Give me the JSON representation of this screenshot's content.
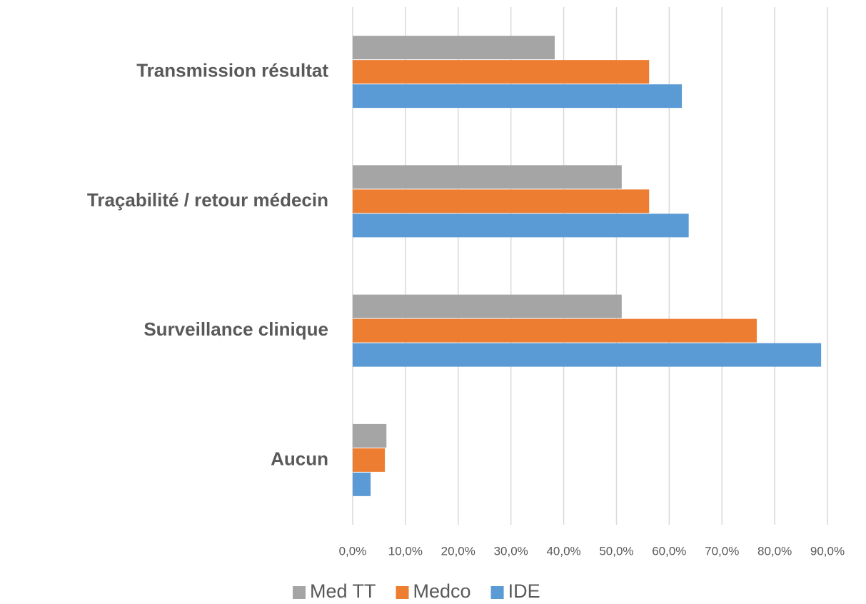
{
  "chart_data": {
    "type": "hbar",
    "categories": [
      "Transmission résultat",
      "Traçabilité / retour médecin",
      "Surveillance clinique",
      "Aucun"
    ],
    "series": [
      {
        "name": "Med TT",
        "color": "#a5a5a5",
        "values": [
          38.3,
          51.0,
          51.0,
          6.4
        ]
      },
      {
        "name": "Medco",
        "color": "#ed7d31",
        "values": [
          56.2,
          56.2,
          76.6,
          6.1
        ]
      },
      {
        "name": "IDE",
        "color": "#5b9bd5",
        "values": [
          62.4,
          63.7,
          88.8,
          3.4
        ]
      }
    ],
    "xlim": [
      0,
      90
    ],
    "xticks": [
      {
        "value": 0,
        "label": "0,0%"
      },
      {
        "value": 10,
        "label": "10,0%"
      },
      {
        "value": 20,
        "label": "20,0%"
      },
      {
        "value": 30,
        "label": "30,0%"
      },
      {
        "value": 40,
        "label": "40,0%"
      },
      {
        "value": 50,
        "label": "50,0%"
      },
      {
        "value": 60,
        "label": "60,0%"
      },
      {
        "value": 70,
        "label": "70,0%"
      },
      {
        "value": 80,
        "label": "80,0%"
      },
      {
        "value": 90,
        "label": "90,0%"
      }
    ],
    "grid": true,
    "legend": "bottom"
  }
}
